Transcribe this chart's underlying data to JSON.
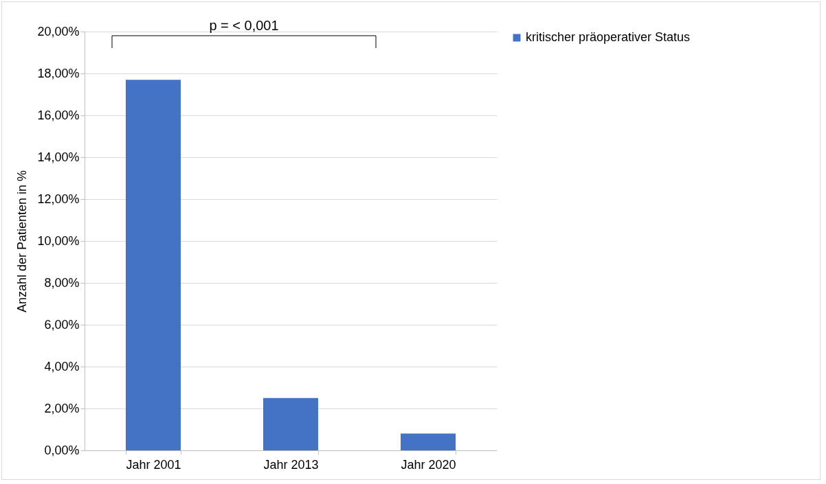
{
  "chart_data": {
    "type": "bar",
    "ylabel": "Anzahl der Patienten in %",
    "categories": [
      "Jahr 2001",
      "Jahr 2013",
      "Jahr 2020"
    ],
    "series": [
      {
        "name": "kritischer präoperativer Status",
        "color": "#4472c4",
        "values": [
          17.7,
          2.5,
          0.8
        ]
      }
    ],
    "ylim": [
      0,
      20
    ],
    "yticks": [
      {
        "value": 0,
        "label": "0,00%"
      },
      {
        "value": 2,
        "label": "2,00%"
      },
      {
        "value": 4,
        "label": "4,00%"
      },
      {
        "value": 6,
        "label": "6,00%"
      },
      {
        "value": 8,
        "label": "8,00%"
      },
      {
        "value": 10,
        "label": "10,00%"
      },
      {
        "value": 12,
        "label": "12,00%"
      },
      {
        "value": 14,
        "label": "14,00%"
      },
      {
        "value": 16,
        "label": "16,00%"
      },
      {
        "value": 18,
        "label": "18,00%"
      },
      {
        "value": 20,
        "label": "20,00%"
      }
    ],
    "grid": "y",
    "legend": "right",
    "annotations": [
      "p = < 0,001"
    ]
  }
}
